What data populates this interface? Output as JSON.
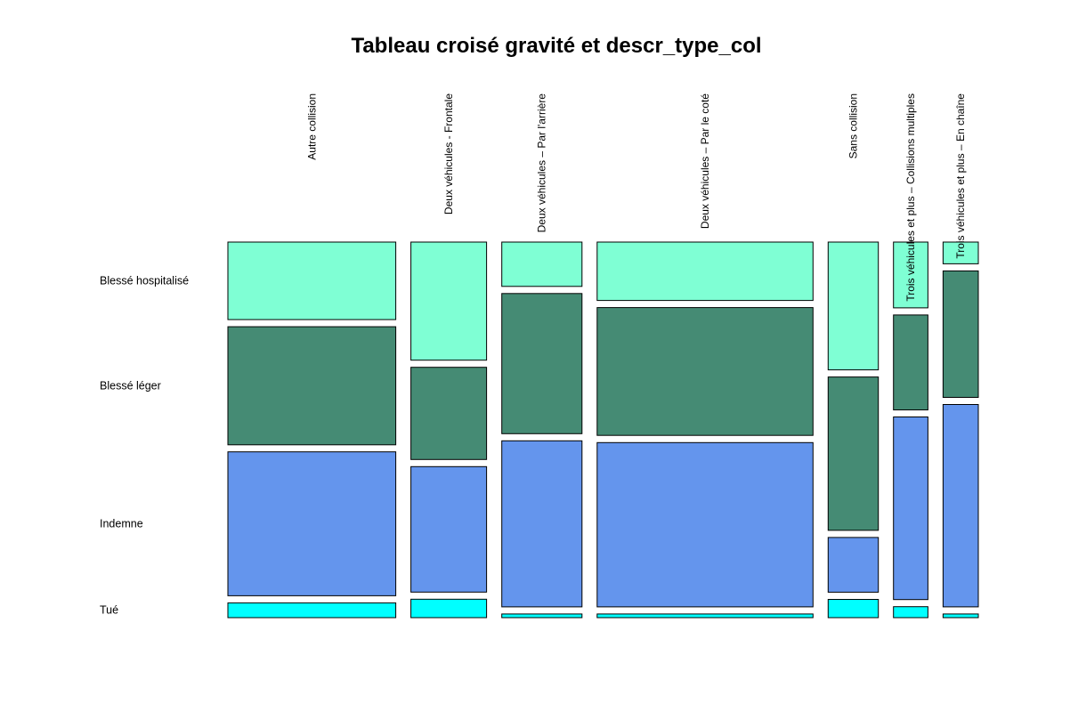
{
  "chart_data": {
    "type": "mosaic",
    "title": "Tableau croisé gravité et descr_type_col",
    "columns": [
      "Autre collision",
      "Deux véhicules - Frontale",
      "Deux véhicules – Par l'arrière",
      "Deux véhicules – Par le coté",
      "Sans collision",
      "Trois véhicules et plus – Collisions multiples",
      "Trois véhicules et plus – En chaîne"
    ],
    "column_shares": [
      0.224,
      0.101,
      0.107,
      0.288,
      0.067,
      0.046,
      0.047
    ],
    "rows": [
      "Blessé hospitalisé",
      "Blessé léger",
      "Indemne",
      "Tué"
    ],
    "row_colors": {
      "Blessé hospitalisé": "#7fffd4",
      "Blessé léger": "#458b74",
      "Indemne": "#6495ed",
      "Tué": "#00ffff"
    },
    "series": [
      {
        "name": "Blessé hospitalisé",
        "values": [
          0.21,
          0.32,
          0.12,
          0.16,
          0.35,
          0.18,
          0.06
        ]
      },
      {
        "name": "Blessé léger",
        "values": [
          0.32,
          0.25,
          0.38,
          0.35,
          0.42,
          0.26,
          0.35
        ]
      },
      {
        "name": "Indemne",
        "values": [
          0.39,
          0.34,
          0.45,
          0.45,
          0.15,
          0.5,
          0.56
        ]
      },
      {
        "name": "Tué",
        "values": [
          0.04,
          0.05,
          0.01,
          0.01,
          0.05,
          0.03,
          0.01
        ]
      }
    ]
  }
}
